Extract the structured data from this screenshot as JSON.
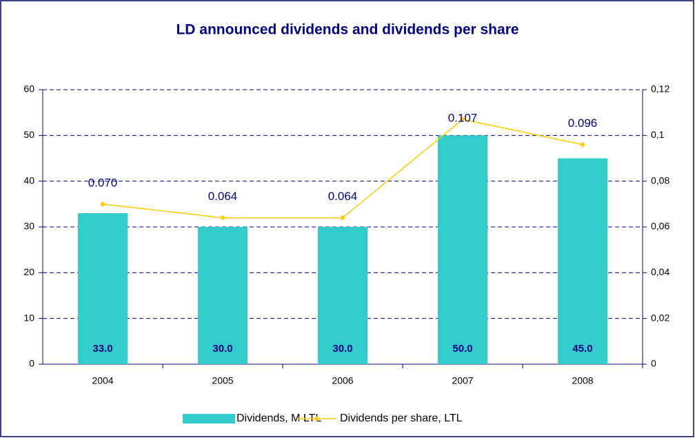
{
  "chart_data": {
    "type": "bar",
    "title": "LD announced dividends and dividends per share",
    "categories": [
      "2004",
      "2005",
      "2006",
      "2007",
      "2008"
    ],
    "series": [
      {
        "name": "Dividends, M LTL",
        "type": "bar",
        "color": "#33cccc",
        "values": [
          33,
          30,
          30,
          50,
          45
        ],
        "value_labels": [
          "33.0",
          "30.0",
          "30.0",
          "50.0",
          "45.0"
        ]
      },
      {
        "name": "Dividends per share, LTL",
        "type": "line",
        "axis": "y2",
        "color": "#ffcc00",
        "values": [
          0.07,
          0.064,
          0.064,
          0.107,
          0.096
        ],
        "value_labels": [
          "0.070",
          "0.064",
          "0.064",
          "0.107",
          "0.096"
        ]
      }
    ],
    "ylim": [
      0,
      60
    ],
    "yticks": [
      0,
      10,
      20,
      30,
      40,
      50,
      60
    ],
    "y2lim": [
      0,
      0.12
    ],
    "y2ticks": [
      0,
      {
        "value": 0.02,
        "label": "0,02"
      },
      {
        "value": 0.04,
        "label": "0,04"
      },
      {
        "value": 0.06,
        "label": "0,06"
      },
      {
        "value": 0.08,
        "label": "0,08"
      },
      {
        "value": 0.1,
        "label": "0,1"
      },
      {
        "value": 0.12,
        "label": "0,12"
      }
    ],
    "grid": true,
    "legend": "bottom"
  }
}
